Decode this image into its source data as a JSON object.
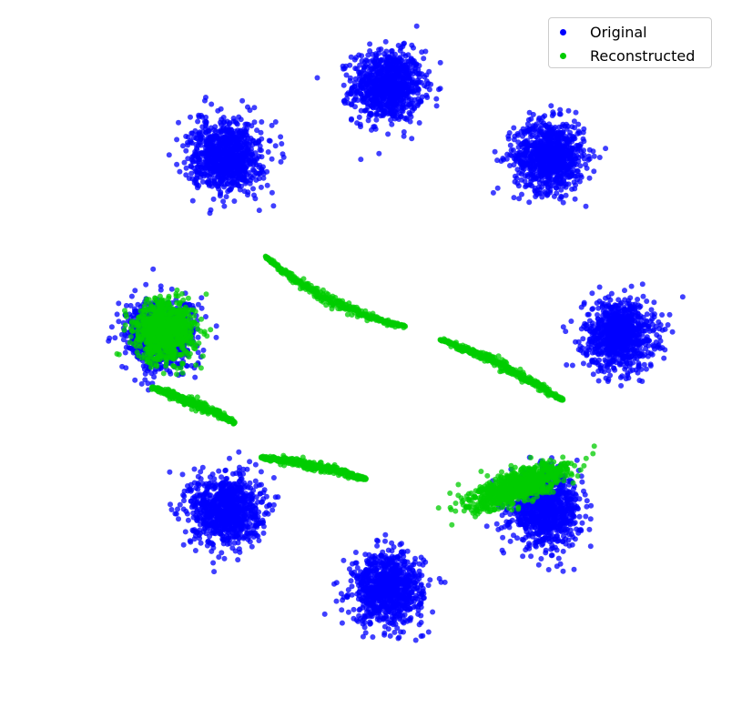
{
  "chart_data": {
    "type": "scatter",
    "title": "",
    "xlabel": "",
    "ylabel": "",
    "axes_visible": false,
    "grid": false,
    "legend_position": "top-right",
    "xlim": [
      -3.7,
      3.7
    ],
    "ylim": [
      -3.7,
      3.7
    ],
    "series": [
      {
        "name": "Original",
        "color": "#0000ff",
        "kind": "gaussian-clusters",
        "std": 0.2,
        "points_per_cluster": 900,
        "centers": [
          [
            0.0,
            2.9
          ],
          [
            1.85,
            2.1
          ],
          [
            2.65,
            0.05
          ],
          [
            1.8,
            -1.95
          ],
          [
            0.0,
            -2.85
          ],
          [
            -1.85,
            -1.95
          ],
          [
            -2.6,
            0.05
          ],
          [
            -1.85,
            2.1
          ]
        ]
      },
      {
        "name": "Reconstructed",
        "color": "#00cc00",
        "kind": "mixed",
        "clusters": [
          {
            "center": [
              -2.55,
              0.1
            ],
            "std": 0.17,
            "n": 900
          },
          {
            "center": [
              1.5,
              -1.68
            ],
            "std": [
              0.3,
              0.08
            ],
            "angle_deg": 20,
            "n": 900
          }
        ],
        "curves": [
          {
            "from": [
              -1.4,
              0.95
            ],
            "to": [
              0.2,
              0.15
            ],
            "bend": -0.12,
            "n": 320
          },
          {
            "from": [
              0.6,
              0.0
            ],
            "to": [
              2.0,
              -0.7
            ],
            "bend": 0.05,
            "n": 320
          },
          {
            "from": [
              -2.7,
              -0.55
            ],
            "to": [
              -1.75,
              -0.95
            ],
            "bend": 0.02,
            "n": 300
          },
          {
            "from": [
              -1.45,
              -1.35
            ],
            "to": [
              -0.25,
              -1.6
            ],
            "bend": 0.03,
            "n": 320
          }
        ]
      }
    ]
  }
}
